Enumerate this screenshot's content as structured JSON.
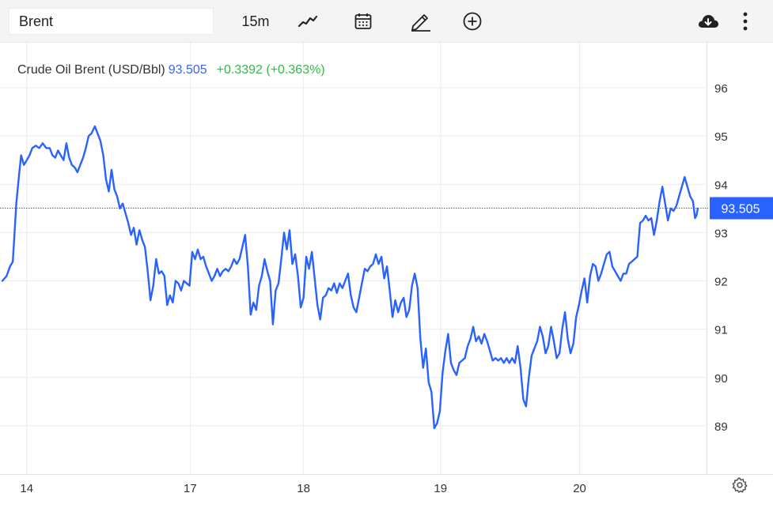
{
  "toolbar": {
    "symbol_value": "Brent",
    "interval_label": "15m",
    "icons": [
      "chart-type-icon",
      "calendar-icon",
      "pencil-icon",
      "add-circle-icon",
      "cloud-download-icon",
      "more-vertical-icon",
      "settings-icon"
    ]
  },
  "legend": {
    "name": "Crude Oil Brent (USD/Bbl)",
    "price": "93.505",
    "change": "+0.3392 (+0.363%)"
  },
  "colors": {
    "line": "#2962ff",
    "price_tag": "#2962ff",
    "positive": "#3bb54a",
    "grid": "#ebebeb"
  },
  "chart_data": {
    "type": "line",
    "title": "Crude Oil Brent (USD/Bbl)",
    "last_price": 93.505,
    "last_price_label": "93.505",
    "ylim": [
      88.0,
      96.9
    ],
    "y_ticks": [
      89,
      90,
      91,
      92,
      93,
      94,
      95,
      96
    ],
    "y_tick_labels": [
      "89",
      "90",
      "91",
      "92",
      "93",
      "94",
      "95",
      "96"
    ],
    "x_range": [
      0,
      100
    ],
    "x_ticks": [
      {
        "x": 3.5,
        "label": "14"
      },
      {
        "x": 27.0,
        "label": "17"
      },
      {
        "x": 43.3,
        "label": "18"
      },
      {
        "x": 63.0,
        "label": "19"
      },
      {
        "x": 83.0,
        "label": "20"
      }
    ],
    "grid": true,
    "series": [
      {
        "name": "",
        "points": [
          [
            0.0,
            92.0
          ],
          [
            0.6,
            92.1
          ],
          [
            1.1,
            92.3
          ],
          [
            1.5,
            92.4
          ],
          [
            2.0,
            93.6
          ],
          [
            2.4,
            94.2
          ],
          [
            2.7,
            94.6
          ],
          [
            3.1,
            94.4
          ],
          [
            3.5,
            94.5
          ],
          [
            3.9,
            94.6
          ],
          [
            4.3,
            94.75
          ],
          [
            4.8,
            94.8
          ],
          [
            5.3,
            94.75
          ],
          [
            5.8,
            94.85
          ],
          [
            6.3,
            94.75
          ],
          [
            6.8,
            94.75
          ],
          [
            7.2,
            94.6
          ],
          [
            7.6,
            94.55
          ],
          [
            8.0,
            94.7
          ],
          [
            8.4,
            94.6
          ],
          [
            8.8,
            94.5
          ],
          [
            9.2,
            94.85
          ],
          [
            9.6,
            94.55
          ],
          [
            10.0,
            94.4
          ],
          [
            10.4,
            94.35
          ],
          [
            10.8,
            94.25
          ],
          [
            11.2,
            94.4
          ],
          [
            11.6,
            94.55
          ],
          [
            12.0,
            94.75
          ],
          [
            12.4,
            95.0
          ],
          [
            12.8,
            95.05
          ],
          [
            13.3,
            95.2
          ],
          [
            13.7,
            95.05
          ],
          [
            14.1,
            94.9
          ],
          [
            14.5,
            94.6
          ],
          [
            14.9,
            94.1
          ],
          [
            15.3,
            93.85
          ],
          [
            15.7,
            94.3
          ],
          [
            16.1,
            93.9
          ],
          [
            16.5,
            93.75
          ],
          [
            16.9,
            93.5
          ],
          [
            17.3,
            93.6
          ],
          [
            17.7,
            93.4
          ],
          [
            18.1,
            93.2
          ],
          [
            18.5,
            92.95
          ],
          [
            18.9,
            93.1
          ],
          [
            19.3,
            92.75
          ],
          [
            19.7,
            93.05
          ],
          [
            20.1,
            92.85
          ],
          [
            20.5,
            92.7
          ],
          [
            20.9,
            92.2
          ],
          [
            21.3,
            91.6
          ],
          [
            21.7,
            91.9
          ],
          [
            22.1,
            92.45
          ],
          [
            22.5,
            92.15
          ],
          [
            22.9,
            92.2
          ],
          [
            23.3,
            92.1
          ],
          [
            23.7,
            91.5
          ],
          [
            24.1,
            91.7
          ],
          [
            24.5,
            91.55
          ],
          [
            24.9,
            92.0
          ],
          [
            25.3,
            91.95
          ],
          [
            25.7,
            91.8
          ],
          [
            26.1,
            92.0
          ],
          [
            26.5,
            91.95
          ],
          [
            26.9,
            91.9
          ],
          [
            27.3,
            92.6
          ],
          [
            27.7,
            92.45
          ],
          [
            28.1,
            92.65
          ],
          [
            28.5,
            92.45
          ],
          [
            28.9,
            92.5
          ],
          [
            29.3,
            92.3
          ],
          [
            29.7,
            92.15
          ],
          [
            30.1,
            92.0
          ],
          [
            30.5,
            92.1
          ],
          [
            30.9,
            92.25
          ],
          [
            31.3,
            92.1
          ],
          [
            31.7,
            92.2
          ],
          [
            32.1,
            92.25
          ],
          [
            32.5,
            92.2
          ],
          [
            32.9,
            92.3
          ],
          [
            33.3,
            92.45
          ],
          [
            33.7,
            92.35
          ],
          [
            34.1,
            92.45
          ],
          [
            34.5,
            92.7
          ],
          [
            34.9,
            92.95
          ],
          [
            35.3,
            92.3
          ],
          [
            35.7,
            91.3
          ],
          [
            36.1,
            91.55
          ],
          [
            36.5,
            91.4
          ],
          [
            36.9,
            91.9
          ],
          [
            37.3,
            92.1
          ],
          [
            37.7,
            92.45
          ],
          [
            38.1,
            92.2
          ],
          [
            38.5,
            92.0
          ],
          [
            38.9,
            91.1
          ],
          [
            39.3,
            91.8
          ],
          [
            39.7,
            91.95
          ],
          [
            40.1,
            92.45
          ],
          [
            40.5,
            93.0
          ],
          [
            40.9,
            92.65
          ],
          [
            41.3,
            93.05
          ],
          [
            41.7,
            92.35
          ],
          [
            42.1,
            92.55
          ],
          [
            42.5,
            92.1
          ],
          [
            42.9,
            91.45
          ],
          [
            43.3,
            91.65
          ],
          [
            43.7,
            92.5
          ],
          [
            44.1,
            92.25
          ],
          [
            44.5,
            92.6
          ],
          [
            44.9,
            92.05
          ],
          [
            45.3,
            91.5
          ],
          [
            45.7,
            91.2
          ],
          [
            46.1,
            91.65
          ],
          [
            46.5,
            91.7
          ],
          [
            46.9,
            91.85
          ],
          [
            47.3,
            91.8
          ],
          [
            47.7,
            91.95
          ],
          [
            48.1,
            91.75
          ],
          [
            48.5,
            91.95
          ],
          [
            48.9,
            91.85
          ],
          [
            49.3,
            92.0
          ],
          [
            49.7,
            92.15
          ],
          [
            50.1,
            91.7
          ],
          [
            50.5,
            91.45
          ],
          [
            50.9,
            91.35
          ],
          [
            51.3,
            91.65
          ],
          [
            51.7,
            91.95
          ],
          [
            52.1,
            92.25
          ],
          [
            52.5,
            92.2
          ],
          [
            52.9,
            92.3
          ],
          [
            53.3,
            92.35
          ],
          [
            53.7,
            92.55
          ],
          [
            54.1,
            92.35
          ],
          [
            54.5,
            92.5
          ],
          [
            54.9,
            92.05
          ],
          [
            55.3,
            92.3
          ],
          [
            55.7,
            91.8
          ],
          [
            56.1,
            91.25
          ],
          [
            56.5,
            91.6
          ],
          [
            56.9,
            91.35
          ],
          [
            57.3,
            91.55
          ],
          [
            57.7,
            91.65
          ],
          [
            58.1,
            91.25
          ],
          [
            58.5,
            91.4
          ],
          [
            58.9,
            91.9
          ],
          [
            59.3,
            92.15
          ],
          [
            59.7,
            91.85
          ],
          [
            60.1,
            90.8
          ],
          [
            60.5,
            90.2
          ],
          [
            60.9,
            90.6
          ],
          [
            61.3,
            89.9
          ],
          [
            61.7,
            89.7
          ],
          [
            62.1,
            88.95
          ],
          [
            62.5,
            89.05
          ],
          [
            62.9,
            89.3
          ],
          [
            63.3,
            90.1
          ],
          [
            63.7,
            90.55
          ],
          [
            64.1,
            90.9
          ],
          [
            64.5,
            90.3
          ],
          [
            64.9,
            90.15
          ],
          [
            65.3,
            90.05
          ],
          [
            65.7,
            90.3
          ],
          [
            66.1,
            90.35
          ],
          [
            66.5,
            90.4
          ],
          [
            66.9,
            90.65
          ],
          [
            67.3,
            90.8
          ],
          [
            67.7,
            91.05
          ],
          [
            68.1,
            90.75
          ],
          [
            68.5,
            90.85
          ],
          [
            68.9,
            90.7
          ],
          [
            69.3,
            90.9
          ],
          [
            69.7,
            90.75
          ],
          [
            70.1,
            90.55
          ],
          [
            70.5,
            90.35
          ],
          [
            70.9,
            90.4
          ],
          [
            71.3,
            90.35
          ],
          [
            71.7,
            90.4
          ],
          [
            72.1,
            90.3
          ],
          [
            72.5,
            90.4
          ],
          [
            72.9,
            90.3
          ],
          [
            73.3,
            90.4
          ],
          [
            73.7,
            90.3
          ],
          [
            74.1,
            90.65
          ],
          [
            74.5,
            90.2
          ],
          [
            74.9,
            89.55
          ],
          [
            75.3,
            89.4
          ],
          [
            75.7,
            90.0
          ],
          [
            76.1,
            90.45
          ],
          [
            76.5,
            90.6
          ],
          [
            76.9,
            90.75
          ],
          [
            77.3,
            91.05
          ],
          [
            77.7,
            90.85
          ],
          [
            78.1,
            90.5
          ],
          [
            78.5,
            90.65
          ],
          [
            78.9,
            91.05
          ],
          [
            79.3,
            90.75
          ],
          [
            79.7,
            90.4
          ],
          [
            80.1,
            90.5
          ],
          [
            80.5,
            91.0
          ],
          [
            80.9,
            91.35
          ],
          [
            81.3,
            90.8
          ],
          [
            81.7,
            90.5
          ],
          [
            82.1,
            90.7
          ],
          [
            82.5,
            91.25
          ],
          [
            82.9,
            91.5
          ],
          [
            83.3,
            91.8
          ],
          [
            83.7,
            92.05
          ],
          [
            84.1,
            91.55
          ],
          [
            84.5,
            92.1
          ],
          [
            84.9,
            92.35
          ],
          [
            85.3,
            92.3
          ],
          [
            85.7,
            92.0
          ],
          [
            86.1,
            92.15
          ],
          [
            86.5,
            92.35
          ],
          [
            86.9,
            92.55
          ],
          [
            87.3,
            92.6
          ],
          [
            87.7,
            92.3
          ],
          [
            88.1,
            92.2
          ],
          [
            88.5,
            92.1
          ],
          [
            88.9,
            92.0
          ],
          [
            89.3,
            92.15
          ],
          [
            89.7,
            92.15
          ],
          [
            90.1,
            92.35
          ],
          [
            90.5,
            92.4
          ],
          [
            90.9,
            92.45
          ],
          [
            91.3,
            92.5
          ],
          [
            91.7,
            93.2
          ],
          [
            92.1,
            93.25
          ],
          [
            92.5,
            93.35
          ],
          [
            92.9,
            93.25
          ],
          [
            93.3,
            93.3
          ],
          [
            93.7,
            92.95
          ],
          [
            94.1,
            93.25
          ],
          [
            94.5,
            93.65
          ],
          [
            94.9,
            93.95
          ],
          [
            95.3,
            93.6
          ],
          [
            95.7,
            93.25
          ],
          [
            96.1,
            93.5
          ],
          [
            96.5,
            93.45
          ],
          [
            96.9,
            93.55
          ],
          [
            97.3,
            93.75
          ],
          [
            97.7,
            93.95
          ],
          [
            98.1,
            94.15
          ],
          [
            98.5,
            93.95
          ],
          [
            98.9,
            93.75
          ],
          [
            99.3,
            93.65
          ],
          [
            99.6,
            93.3
          ],
          [
            99.8,
            93.35
          ],
          [
            100.0,
            93.5
          ]
        ]
      }
    ]
  }
}
